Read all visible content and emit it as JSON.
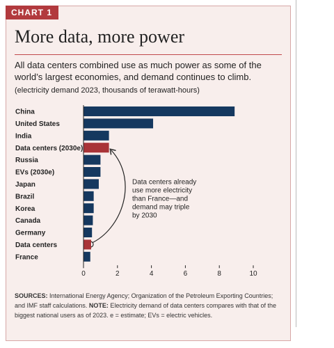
{
  "chart_data": {
    "type": "bar",
    "orientation": "horizontal",
    "label": "CHART 1",
    "title": "More data, more power",
    "subtitle": "All data centers combined use as much power as some of the world’s largest economies, and demand continues to climb.",
    "units": "(electricity demand 2023, thousands of terawatt-hours)",
    "categories": [
      "China",
      "United States",
      "India",
      "Data centers (2030e)",
      "Russia",
      "EVs (2030e)",
      "Japan",
      "Brazil",
      "Korea",
      "Canada",
      "Germany",
      "Data centers",
      "France"
    ],
    "values": [
      8.9,
      4.1,
      1.5,
      1.5,
      1.0,
      1.0,
      0.9,
      0.6,
      0.6,
      0.55,
      0.5,
      0.45,
      0.4
    ],
    "colors": [
      "#15385f",
      "#15385f",
      "#15385f",
      "#a93438",
      "#15385f",
      "#15385f",
      "#15385f",
      "#15385f",
      "#15385f",
      "#15385f",
      "#15385f",
      "#a93438",
      "#15385f"
    ],
    "xlim": [
      0,
      10
    ],
    "xticks": [
      0,
      2,
      4,
      6,
      8,
      10
    ],
    "grid": false,
    "annotation": [
      "Data centers already",
      "use more electricity",
      "than France—and",
      "demand may triple",
      "by 2030"
    ],
    "sources_label": "SOURCES:",
    "sources": "International Energy Agency; Organization of the Petroleum Exporting Countries; and IMF staff calculations.",
    "note_label": "NOTE:",
    "note": "Electricity demand of data centers compares with that of the biggest national users as of 2023. e = estimate; EVs = electric vehicles."
  }
}
